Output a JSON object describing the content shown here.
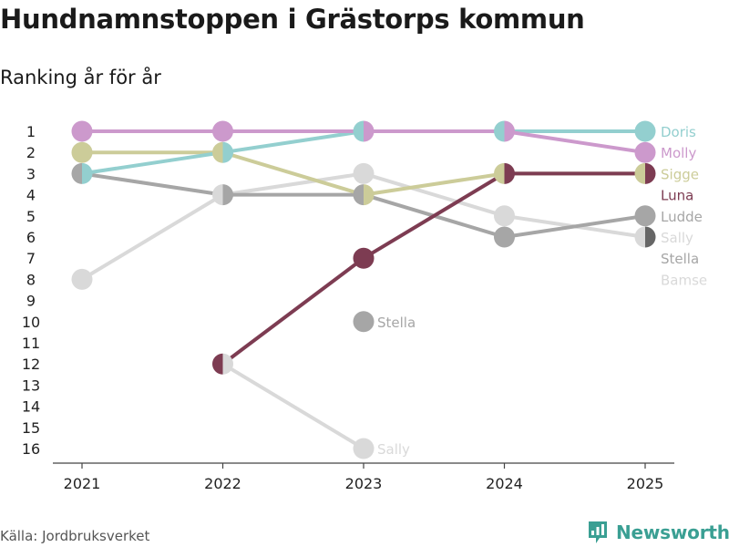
{
  "header": {
    "title": "Hundnamnstoppen i Grästorps kommun",
    "subtitle": "Ranking år för år"
  },
  "footer": {
    "source": "Källa: Jordbruksverket",
    "brand": "Newsworthy"
  },
  "colors": {
    "Doris": "#93cfcf",
    "Molly": "#cc99cc",
    "Sigge": "#cccc99",
    "Luna": "#7d3c52",
    "Ludde": "#a6a6a6",
    "Sally": "#d9d9d9",
    "Stella": "#a6a6a6",
    "Bamse": "#d9d9d9",
    "Stella_last": "#666666",
    "brand": "#3a9f93"
  },
  "chart_data": {
    "type": "line",
    "x": [
      2021,
      2022,
      2023,
      2024,
      2025
    ],
    "y_axis": {
      "ticks": [
        1,
        2,
        3,
        4,
        5,
        6,
        7,
        8,
        9,
        10,
        11,
        12,
        13,
        14,
        15,
        16
      ],
      "inverted": true,
      "ylim": [
        16,
        1
      ]
    },
    "series": [
      {
        "name": "Sally",
        "values": [
          8,
          4,
          3,
          5,
          6
        ]
      },
      {
        "name": "Ludde",
        "values": [
          3,
          4,
          4,
          6,
          5
        ]
      },
      {
        "name": "Sigge",
        "values": [
          2,
          2,
          4,
          3,
          3
        ]
      },
      {
        "name": "Doris",
        "values": [
          3,
          2,
          1,
          1,
          1
        ]
      },
      {
        "name": "Molly",
        "values": [
          1,
          1,
          1,
          1,
          2
        ]
      },
      {
        "name": "Luna",
        "values": [
          null,
          12,
          7,
          3,
          3
        ]
      },
      {
        "name": "Stella",
        "values": [
          null,
          null,
          null,
          null,
          6
        ]
      },
      {
        "name": "Bamse",
        "values": [
          null,
          null,
          null,
          null,
          null
        ]
      }
    ],
    "extra_points": [
      {
        "year": 2022,
        "rank": 12,
        "note": "Sally"
      },
      {
        "year": 2023,
        "rank": 16,
        "label": "Sally"
      },
      {
        "year": 2023,
        "rank": 10,
        "label": "Stella"
      }
    ],
    "end_labels": [
      "Doris",
      "Molly",
      "Sigge",
      "Luna",
      "Ludde",
      "Sally",
      "Stella",
      "Bamse"
    ]
  }
}
